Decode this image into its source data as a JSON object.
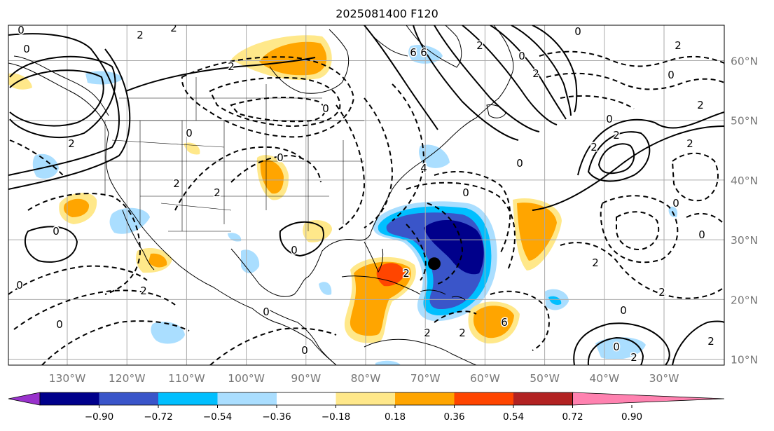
{
  "title": "2025081400 F120",
  "colors": {
    "neg": [
      "#9932cc",
      "#00008b",
      "#3a55c9",
      "#00bfff",
      "#aadeff"
    ],
    "zero": "#ffffff",
    "pos": [
      "#ffe88a",
      "#ffa500",
      "#ff4500",
      "#b22222",
      "#ff82b0"
    ],
    "grid": "#aaaaaa",
    "coast": "#000000",
    "contour": "#000000",
    "marker": "#000000"
  },
  "lon_labels": [
    "130°W",
    "120°W",
    "110°W",
    "100°W",
    "90°W",
    "80°W",
    "70°W",
    "60°W",
    "50°W",
    "40°W",
    "30°W"
  ],
  "lat_labels": [
    "60°N",
    "50°N",
    "40°N",
    "30°N",
    "20°N",
    "10°N"
  ],
  "colorbar": {
    "ticks": [
      "−0.90",
      "−0.72",
      "−0.54",
      "−0.36",
      "−0.18",
      "0.18",
      "0.36",
      "0.54",
      "0.72",
      "0.90"
    ],
    "extend": "both"
  },
  "contour_labels": [
    "0",
    "0",
    "2",
    "2",
    "2",
    "0",
    "0",
    "0",
    "0",
    "0",
    "2",
    "2",
    "2",
    "0",
    "0",
    "2",
    "0",
    "0",
    "2",
    "2",
    "4",
    "6",
    "6",
    "6",
    "0",
    "2",
    "0",
    "2",
    "0",
    "2",
    "2",
    "0",
    "2",
    "2",
    "2",
    "0",
    "0",
    "2",
    "0",
    "0",
    "2",
    "2",
    "0",
    "2",
    "0",
    "2"
  ],
  "marker": {
    "name": "storm-center",
    "lat": 26,
    "lon": -68.5
  }
}
